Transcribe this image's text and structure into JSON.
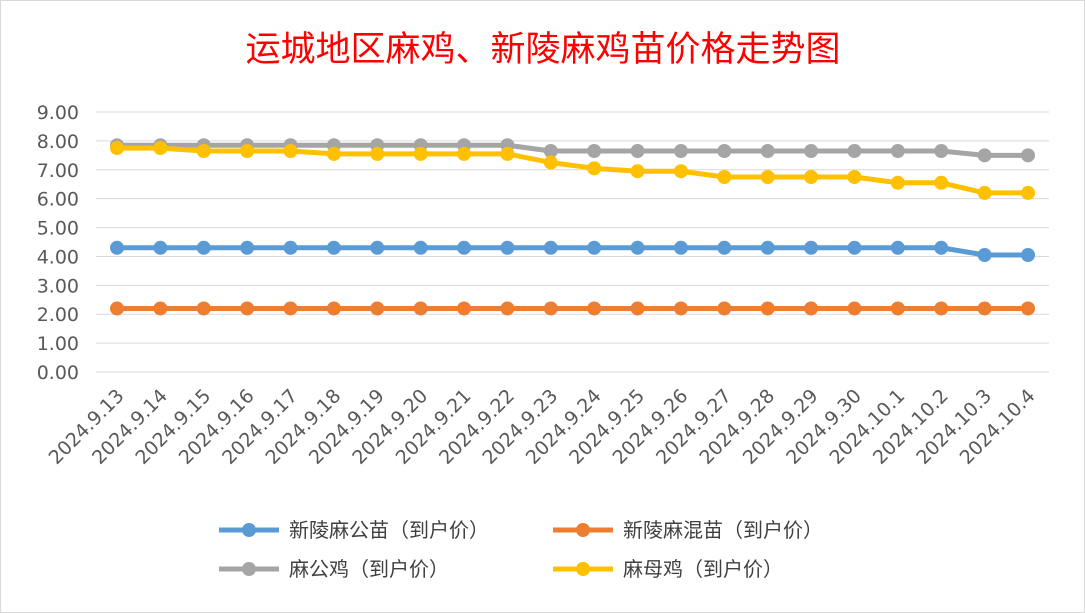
{
  "chart_data": {
    "type": "line",
    "title": "运城地区麻鸡、新陵麻鸡苗价格走势图",
    "xlabel": "",
    "ylabel": "",
    "ylim": [
      0,
      9
    ],
    "yticks": [
      "0.00",
      "1.00",
      "2.00",
      "3.00",
      "4.00",
      "5.00",
      "6.00",
      "7.00",
      "8.00",
      "9.00"
    ],
    "grid": true,
    "legend_position": "bottom",
    "categories": [
      "2024.9.13",
      "2024.9.14",
      "2024.9.15",
      "2024.9.16",
      "2024.9.17",
      "2024.9.18",
      "2024.9.19",
      "2024.9.20",
      "2024.9.21",
      "2024.9.22",
      "2024.9.23",
      "2024.9.24",
      "2024.9.25",
      "2024.9.26",
      "2024.9.27",
      "2024.9.28",
      "2024.9.29",
      "2024.9.30",
      "2024.10.1",
      "2024.10.2",
      "2024.10.3",
      "2024.10.4"
    ],
    "series": [
      {
        "name": "新陵麻公苗（到户价）",
        "color": "#5b9bd5",
        "values": [
          4.3,
          4.3,
          4.3,
          4.3,
          4.3,
          4.3,
          4.3,
          4.3,
          4.3,
          4.3,
          4.3,
          4.3,
          4.3,
          4.3,
          4.3,
          4.3,
          4.3,
          4.3,
          4.3,
          4.3,
          4.05,
          4.05
        ]
      },
      {
        "name": "新陵麻混苗（到户价）",
        "color": "#ed7d31",
        "values": [
          2.2,
          2.2,
          2.2,
          2.2,
          2.2,
          2.2,
          2.2,
          2.2,
          2.2,
          2.2,
          2.2,
          2.2,
          2.2,
          2.2,
          2.2,
          2.2,
          2.2,
          2.2,
          2.2,
          2.2,
          2.2,
          2.2
        ]
      },
      {
        "name": "麻公鸡（到户价）",
        "color": "#a5a5a5",
        "values": [
          7.85,
          7.85,
          7.85,
          7.85,
          7.85,
          7.85,
          7.85,
          7.85,
          7.85,
          7.85,
          7.65,
          7.65,
          7.65,
          7.65,
          7.65,
          7.65,
          7.65,
          7.65,
          7.65,
          7.65,
          7.5,
          7.5
        ]
      },
      {
        "name": "麻母鸡（到户价）",
        "color": "#ffc000",
        "values": [
          7.75,
          7.75,
          7.65,
          7.65,
          7.65,
          7.55,
          7.55,
          7.55,
          7.55,
          7.55,
          7.25,
          7.05,
          6.95,
          6.95,
          6.75,
          6.75,
          6.75,
          6.75,
          6.55,
          6.55,
          6.2,
          6.2
        ]
      }
    ]
  }
}
